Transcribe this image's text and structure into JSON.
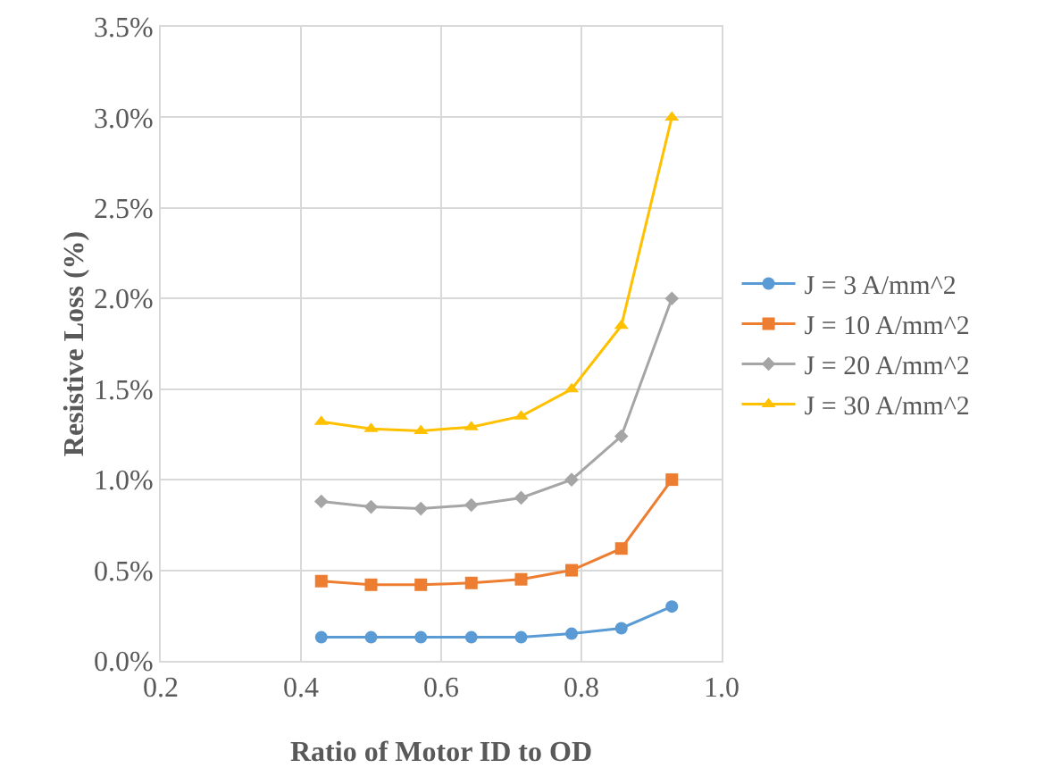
{
  "chart_data": {
    "type": "line",
    "xlabel": "Ratio of Motor ID to OD",
    "ylabel": "Resistive Loss (%)",
    "x": [
      0.429,
      0.5,
      0.571,
      0.643,
      0.714,
      0.786,
      0.857,
      0.929
    ],
    "series": [
      {
        "name": "J = 3 A/mm^2",
        "color": "#5b9bd5",
        "marker": "circle",
        "values": [
          0.13,
          0.13,
          0.13,
          0.13,
          0.13,
          0.15,
          0.18,
          0.3
        ]
      },
      {
        "name": "J = 10 A/mm^2",
        "color": "#ed7d31",
        "marker": "square",
        "values": [
          0.44,
          0.42,
          0.42,
          0.43,
          0.45,
          0.5,
          0.62,
          1.0
        ]
      },
      {
        "name": "J = 20 A/mm^2",
        "color": "#a5a5a5",
        "marker": "diamond",
        "values": [
          0.88,
          0.85,
          0.84,
          0.86,
          0.9,
          1.0,
          1.24,
          2.0
        ]
      },
      {
        "name": "J = 30 A/mm^2",
        "color": "#ffc000",
        "marker": "triangle",
        "values": [
          1.32,
          1.28,
          1.27,
          1.29,
          1.35,
          1.5,
          1.85,
          3.0
        ]
      }
    ],
    "xlim": [
      0.2,
      1.0
    ],
    "xticks": [
      0.2,
      0.4,
      0.6,
      0.8,
      {
        "value": 1,
        "label": "1.0"
      }
    ],
    "ylim": [
      0,
      3.5
    ],
    "yticks": [
      {
        "value": 0,
        "label": "0.0%"
      },
      {
        "value": 0.5,
        "label": "0.5%"
      },
      {
        "value": 1,
        "label": "1.0%"
      },
      {
        "value": 1.5,
        "label": "1.5%"
      },
      {
        "value": 2,
        "label": "2.0%"
      },
      {
        "value": 2.5,
        "label": "2.5%"
      },
      {
        "value": 3,
        "label": "3.0%"
      },
      {
        "value": 3.5,
        "label": "3.5%"
      }
    ],
    "grid": true,
    "legend": "right",
    "line_style": "solid"
  }
}
